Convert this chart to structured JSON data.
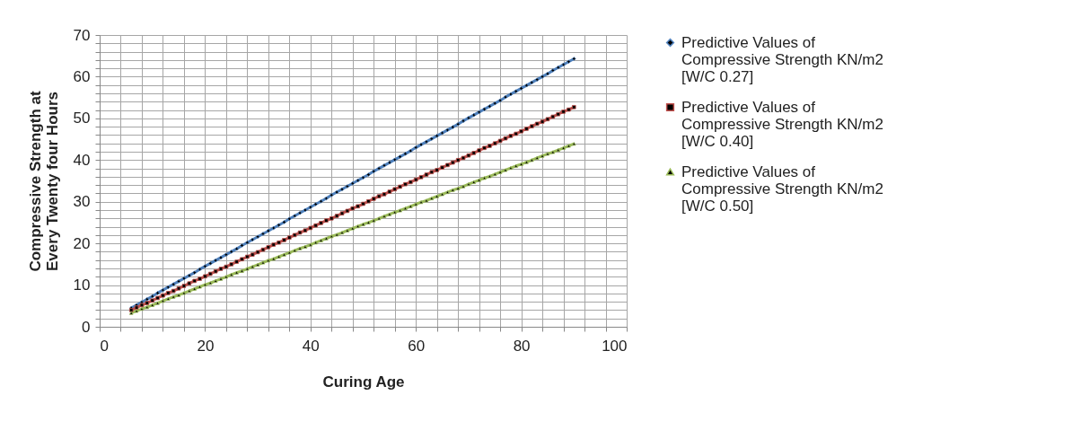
{
  "chart_data": {
    "type": "line",
    "xlabel": "Curing Age",
    "ylabel": "Compressive Strength  at Every Twenty four Hours",
    "x": [
      6,
      7,
      8,
      9,
      10,
      11,
      12,
      13,
      14,
      15,
      16,
      17,
      18,
      19,
      20,
      21,
      22,
      23,
      24,
      25,
      26,
      27,
      28,
      29,
      30,
      31,
      32,
      33,
      34,
      35,
      36,
      37,
      38,
      39,
      40,
      41,
      42,
      43,
      44,
      45,
      46,
      47,
      48,
      49,
      50,
      51,
      52,
      53,
      54,
      55,
      56,
      57,
      58,
      59,
      60,
      61,
      62,
      63,
      64,
      65,
      66,
      67,
      68,
      69,
      70,
      71,
      72,
      73,
      74,
      75,
      76,
      77,
      78,
      79,
      80,
      81,
      82,
      83,
      84,
      85,
      86,
      87,
      88,
      89,
      90
    ],
    "series": [
      {
        "name": "Predictive Values of Compressive Strength KN/m2 [W/C 0.27]",
        "color": "#4f81bd",
        "marker": "diamond",
        "values": [
          4.5,
          5.2,
          5.9,
          6.6,
          7.3,
          8.1,
          8.8,
          9.5,
          10.2,
          10.9,
          11.6,
          12.3,
          13.0,
          13.8,
          14.5,
          15.2,
          15.9,
          16.6,
          17.3,
          18.0,
          18.7,
          19.5,
          20.2,
          20.9,
          21.6,
          22.3,
          23.0,
          23.7,
          24.4,
          25.1,
          25.9,
          26.6,
          27.3,
          28.0,
          28.7,
          29.4,
          30.1,
          30.8,
          31.6,
          32.3,
          33.0,
          33.7,
          34.4,
          35.1,
          35.8,
          36.5,
          37.3,
          38.0,
          38.7,
          39.4,
          40.1,
          40.8,
          41.5,
          42.2,
          43.0,
          43.7,
          44.4,
          45.1,
          45.8,
          46.5,
          47.2,
          47.9,
          48.6,
          49.4,
          50.1,
          50.8,
          51.5,
          52.2,
          52.9,
          53.6,
          54.3,
          55.1,
          55.8,
          56.5,
          57.2,
          57.9,
          58.6,
          59.3,
          60.0,
          60.7,
          61.5,
          62.2,
          62.9,
          63.6,
          64.3
        ]
      },
      {
        "name": "Predictive Values of Compressive Strength KN/m2 [W/C 0.40]",
        "color": "#c0504d",
        "marker": "square",
        "values": [
          4.0,
          4.6,
          5.2,
          5.7,
          6.3,
          6.9,
          7.5,
          8.1,
          8.6,
          9.2,
          9.8,
          10.4,
          11.0,
          11.5,
          12.1,
          12.7,
          13.3,
          13.9,
          14.4,
          15.0,
          15.6,
          16.2,
          16.8,
          17.3,
          17.9,
          18.5,
          19.1,
          19.7,
          20.2,
          20.8,
          21.4,
          22.0,
          22.6,
          23.1,
          23.7,
          24.3,
          24.9,
          25.5,
          26.0,
          26.6,
          27.2,
          27.8,
          28.4,
          28.9,
          29.5,
          30.1,
          30.7,
          31.3,
          31.8,
          32.4,
          33.0,
          33.6,
          34.2,
          34.7,
          35.3,
          35.9,
          36.5,
          37.1,
          37.6,
          38.2,
          38.8,
          39.4,
          40.0,
          40.5,
          41.1,
          41.7,
          42.3,
          42.9,
          43.4,
          44.0,
          44.6,
          45.2,
          45.8,
          46.3,
          46.9,
          47.5,
          48.1,
          48.7,
          49.2,
          49.8,
          50.4,
          51.0,
          51.6,
          52.1,
          52.7
        ]
      },
      {
        "name": "Predictive Values of Compressive Strength KN/m2 [W/C 0.50]",
        "color": "#9bbb59",
        "marker": "triangle",
        "values": [
          3.3,
          3.8,
          4.3,
          4.7,
          5.2,
          5.7,
          6.2,
          6.7,
          7.2,
          7.6,
          8.1,
          8.6,
          9.1,
          9.6,
          10.1,
          10.5,
          11.0,
          11.5,
          12.0,
          12.5,
          13.0,
          13.4,
          13.9,
          14.4,
          14.9,
          15.4,
          15.9,
          16.3,
          16.8,
          17.3,
          17.8,
          18.3,
          18.8,
          19.2,
          19.7,
          20.2,
          20.7,
          21.2,
          21.7,
          22.1,
          22.6,
          23.1,
          23.6,
          24.1,
          24.6,
          25.0,
          25.5,
          26.0,
          26.5,
          27.0,
          27.5,
          27.9,
          28.4,
          28.9,
          29.4,
          29.9,
          30.3,
          30.8,
          31.3,
          31.8,
          32.3,
          32.8,
          33.2,
          33.7,
          34.2,
          34.7,
          35.2,
          35.7,
          36.1,
          36.6,
          37.1,
          37.6,
          38.1,
          38.6,
          39.0,
          39.5,
          40.0,
          40.5,
          41.0,
          41.5,
          41.9,
          42.4,
          42.9,
          43.4,
          43.9
        ]
      }
    ],
    "xlim": [
      0,
      100
    ],
    "xticks": [
      0,
      {
        "value": 4,
        "label": null
      },
      {
        "value": 8,
        "label": null
      },
      {
        "value": 12,
        "label": null
      },
      {
        "value": 16,
        "label": null
      },
      20,
      {
        "value": 24,
        "label": null
      },
      {
        "value": 28,
        "label": null
      },
      {
        "value": 32,
        "label": null
      },
      {
        "value": 36,
        "label": null
      },
      40,
      {
        "value": 44,
        "label": null
      },
      {
        "value": 48,
        "label": null
      },
      {
        "value": 52,
        "label": null
      },
      {
        "value": 56,
        "label": null
      },
      60,
      {
        "value": 64,
        "label": null
      },
      {
        "value": 68,
        "label": null
      },
      {
        "value": 72,
        "label": null
      },
      {
        "value": 76,
        "label": null
      },
      80,
      {
        "value": 84,
        "label": null
      },
      {
        "value": 88,
        "label": null
      },
      {
        "value": 92,
        "label": null
      },
      {
        "value": 96,
        "label": null
      },
      100
    ],
    "ylim": [
      0,
      70
    ],
    "yticks": [
      0,
      {
        "value": 2,
        "label": null
      },
      {
        "value": 4,
        "label": null
      },
      {
        "value": 6,
        "label": null
      },
      {
        "value": 8,
        "label": null
      },
      10,
      {
        "value": 12,
        "label": null
      },
      {
        "value": 14,
        "label": null
      },
      {
        "value": 16,
        "label": null
      },
      {
        "value": 18,
        "label": null
      },
      20,
      {
        "value": 22,
        "label": null
      },
      {
        "value": 24,
        "label": null
      },
      {
        "value": 26,
        "label": null
      },
      {
        "value": 28,
        "label": null
      },
      30,
      {
        "value": 32,
        "label": null
      },
      {
        "value": 34,
        "label": null
      },
      {
        "value": 36,
        "label": null
      },
      {
        "value": 38,
        "label": null
      },
      40,
      {
        "value": 42,
        "label": null
      },
      {
        "value": 44,
        "label": null
      },
      {
        "value": 46,
        "label": null
      },
      {
        "value": 48,
        "label": null
      },
      50,
      {
        "value": 52,
        "label": null
      },
      {
        "value": 54,
        "label": null
      },
      {
        "value": 56,
        "label": null
      },
      {
        "value": 58,
        "label": null
      },
      60,
      {
        "value": 62,
        "label": null
      },
      {
        "value": 64,
        "label": null
      },
      {
        "value": 66,
        "label": null
      },
      {
        "value": 68,
        "label": null
      },
      70
    ],
    "grid": true,
    "legend": "right",
    "line_style": "solid"
  }
}
